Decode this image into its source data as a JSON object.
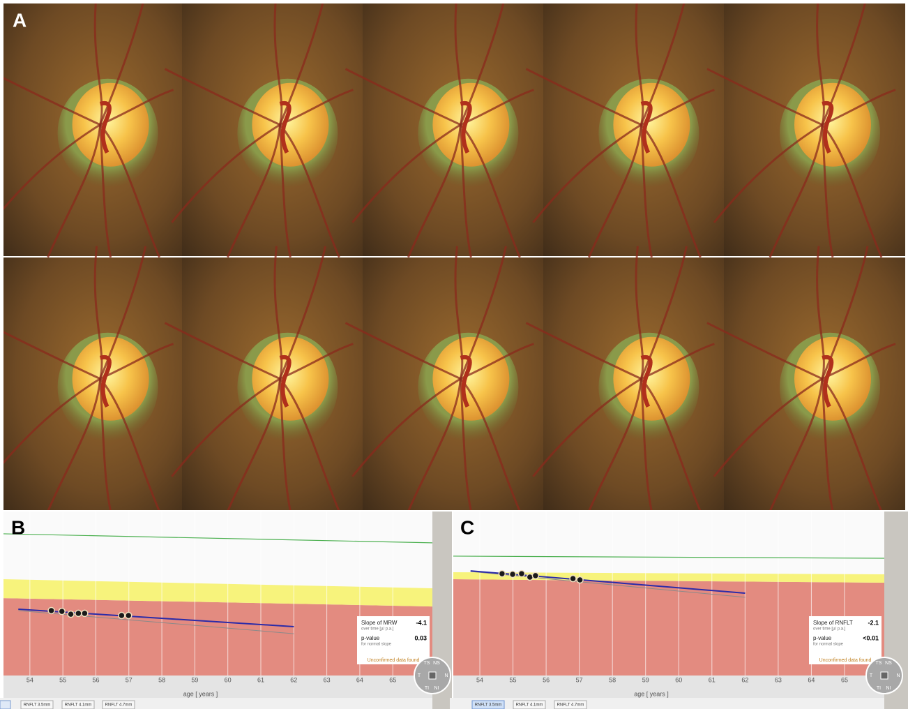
{
  "figure": {
    "panel_labels": [
      "A",
      "B",
      "C"
    ]
  },
  "chart_data": [
    {
      "type": "scatter",
      "xlabel": "age [ years ]",
      "xlim": [
        53.2,
        66.2
      ],
      "xticks": [
        54,
        55,
        56,
        57,
        58,
        59,
        60,
        61,
        62,
        63,
        64,
        65
      ],
      "ylim": [
        0,
        100
      ],
      "grid": true,
      "x": [
        54.65,
        54.97,
        55.24,
        55.47,
        55.66,
        56.78,
        56.99
      ],
      "values": [
        39.6,
        39.1,
        37.4,
        37.9,
        37.9,
        36.6,
        36.6
      ],
      "color": "#1a1a1a",
      "trend": {
        "x": [
          53.65,
          62.0
        ],
        "values": [
          40.4,
          29.8
        ],
        "color": "#2b2ba8"
      },
      "reference_trend": {
        "x": [
          53.65,
          62.0
        ],
        "values": [
          39.6,
          25.5
        ],
        "color": "#8a8a8a"
      },
      "normal_limit": {
        "x": [
          53.2,
          66.2
        ],
        "values": [
          86.4,
          80.9
        ],
        "color": "#4cb050"
      },
      "borderline_band": {
        "x": [
          53.2,
          66.2
        ],
        "upper": [
          58.7,
          53.2
        ],
        "lower": [
          47.2,
          42.1
        ],
        "color": "#f7f37c"
      },
      "outside_normal_color": "#e38b80",
      "stats": {
        "slope_title": "Slope of MRW",
        "slope_sub": "over time [µ/ p.a.]",
        "slope": -4.1,
        "p_title": "p-value",
        "p_sub": "for normal slope",
        "p_value": "0.03",
        "note": "Unconfirmed data found"
      },
      "sectors": [
        "TS",
        "NS",
        "T",
        "N",
        "TI",
        "NI"
      ],
      "buttons": [
        "RNFLT 3.5mm",
        "RNFLT 4.1mm",
        "RNFLT 4.7mm"
      ]
    },
    {
      "type": "scatter",
      "xlabel": "age [ years ]",
      "xlim": [
        53.2,
        66.2
      ],
      "xticks": [
        54,
        55,
        56,
        57,
        58,
        59,
        60,
        61,
        62,
        63,
        64,
        65
      ],
      "ylim": [
        0,
        100
      ],
      "grid": true,
      "x": [
        54.67,
        54.99,
        55.26,
        55.51,
        55.68,
        56.81,
        57.02
      ],
      "values": [
        62.1,
        61.7,
        62.1,
        60.0,
        60.9,
        59.1,
        58.3
      ],
      "color": "#1a1a1a",
      "trend": {
        "x": [
          53.72,
          62.0
        ],
        "values": [
          63.8,
          50.2
        ],
        "color": "#2b2ba8"
      },
      "reference_trend": {
        "x": [
          53.72,
          62.0
        ],
        "values": [
          63.4,
          47.7
        ],
        "color": "#8a8a8a"
      },
      "normal_limit": {
        "x": [
          53.2,
          66.2
        ],
        "values": [
          72.8,
          71.5
        ],
        "color": "#4cb050"
      },
      "borderline_band": {
        "x": [
          53.2,
          66.2
        ],
        "upper": [
          63.0,
          61.7
        ],
        "lower": [
          58.7,
          56.6
        ],
        "color": "#f7f37c"
      },
      "outside_normal_color": "#e38b80",
      "stats": {
        "slope_title": "Slope of  RNFLT",
        "slope_sub": "over time [µ/ p.a.]",
        "slope": -2.1,
        "p_title": "p-value",
        "p_sub": "for normal slope",
        "p_value": "<0.01",
        "note": "Unconfirmed data found"
      },
      "sectors": [
        "TS",
        "NS",
        "T",
        "N",
        "TI",
        "NI"
      ],
      "buttons": [
        "RNFLT 3.5mm",
        "RNFLT 4.1mm",
        "RNFLT 4.7mm"
      ]
    }
  ]
}
